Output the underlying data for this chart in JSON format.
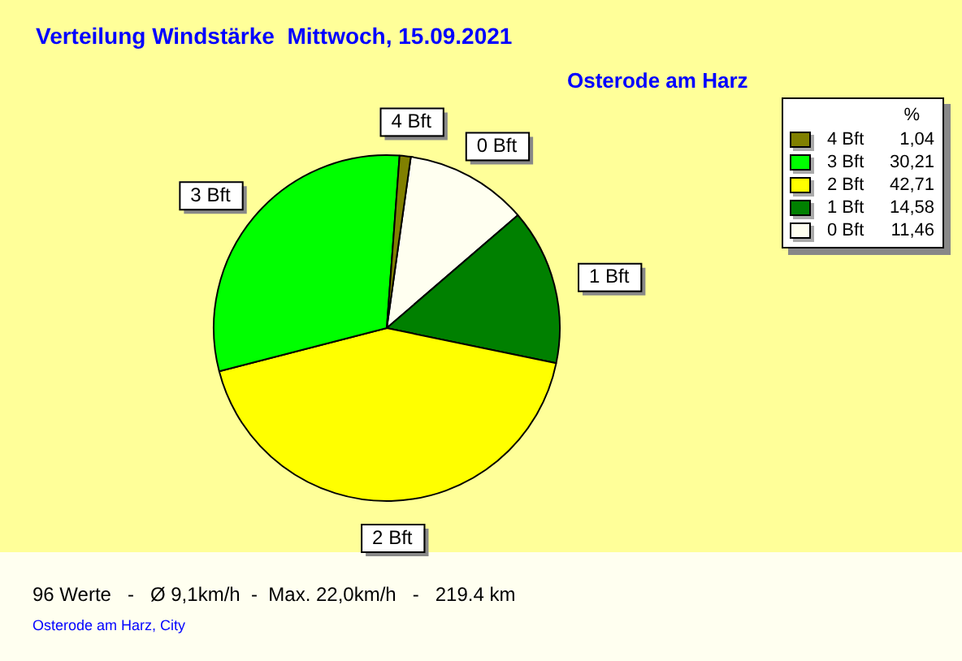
{
  "chart_data": {
    "type": "pie",
    "title": "Verteilung Windstärke  Mittwoch, 15.09.2021",
    "subtitle": "Osterode am Harz",
    "legend_title": "%",
    "legend": "top right",
    "categories": [
      "4 Bft",
      "3 Bft",
      "2 Bft",
      "1 Bft",
      "0 Bft"
    ],
    "values": [
      1.04,
      30.21,
      42.71,
      14.58,
      11.46
    ],
    "value_labels": [
      "1,04",
      "30,21",
      "42,71",
      "14,58",
      "11,46"
    ],
    "colors": [
      "#808000",
      "#00ff00",
      "#ffff00",
      "#008000",
      "#fffff0"
    ],
    "annotations": [
      "96 Werte   -   Ø 9,1km/h  -  Max. 22,0km/h   -   219.4 km",
      "Osterode am Harz, City"
    ]
  }
}
